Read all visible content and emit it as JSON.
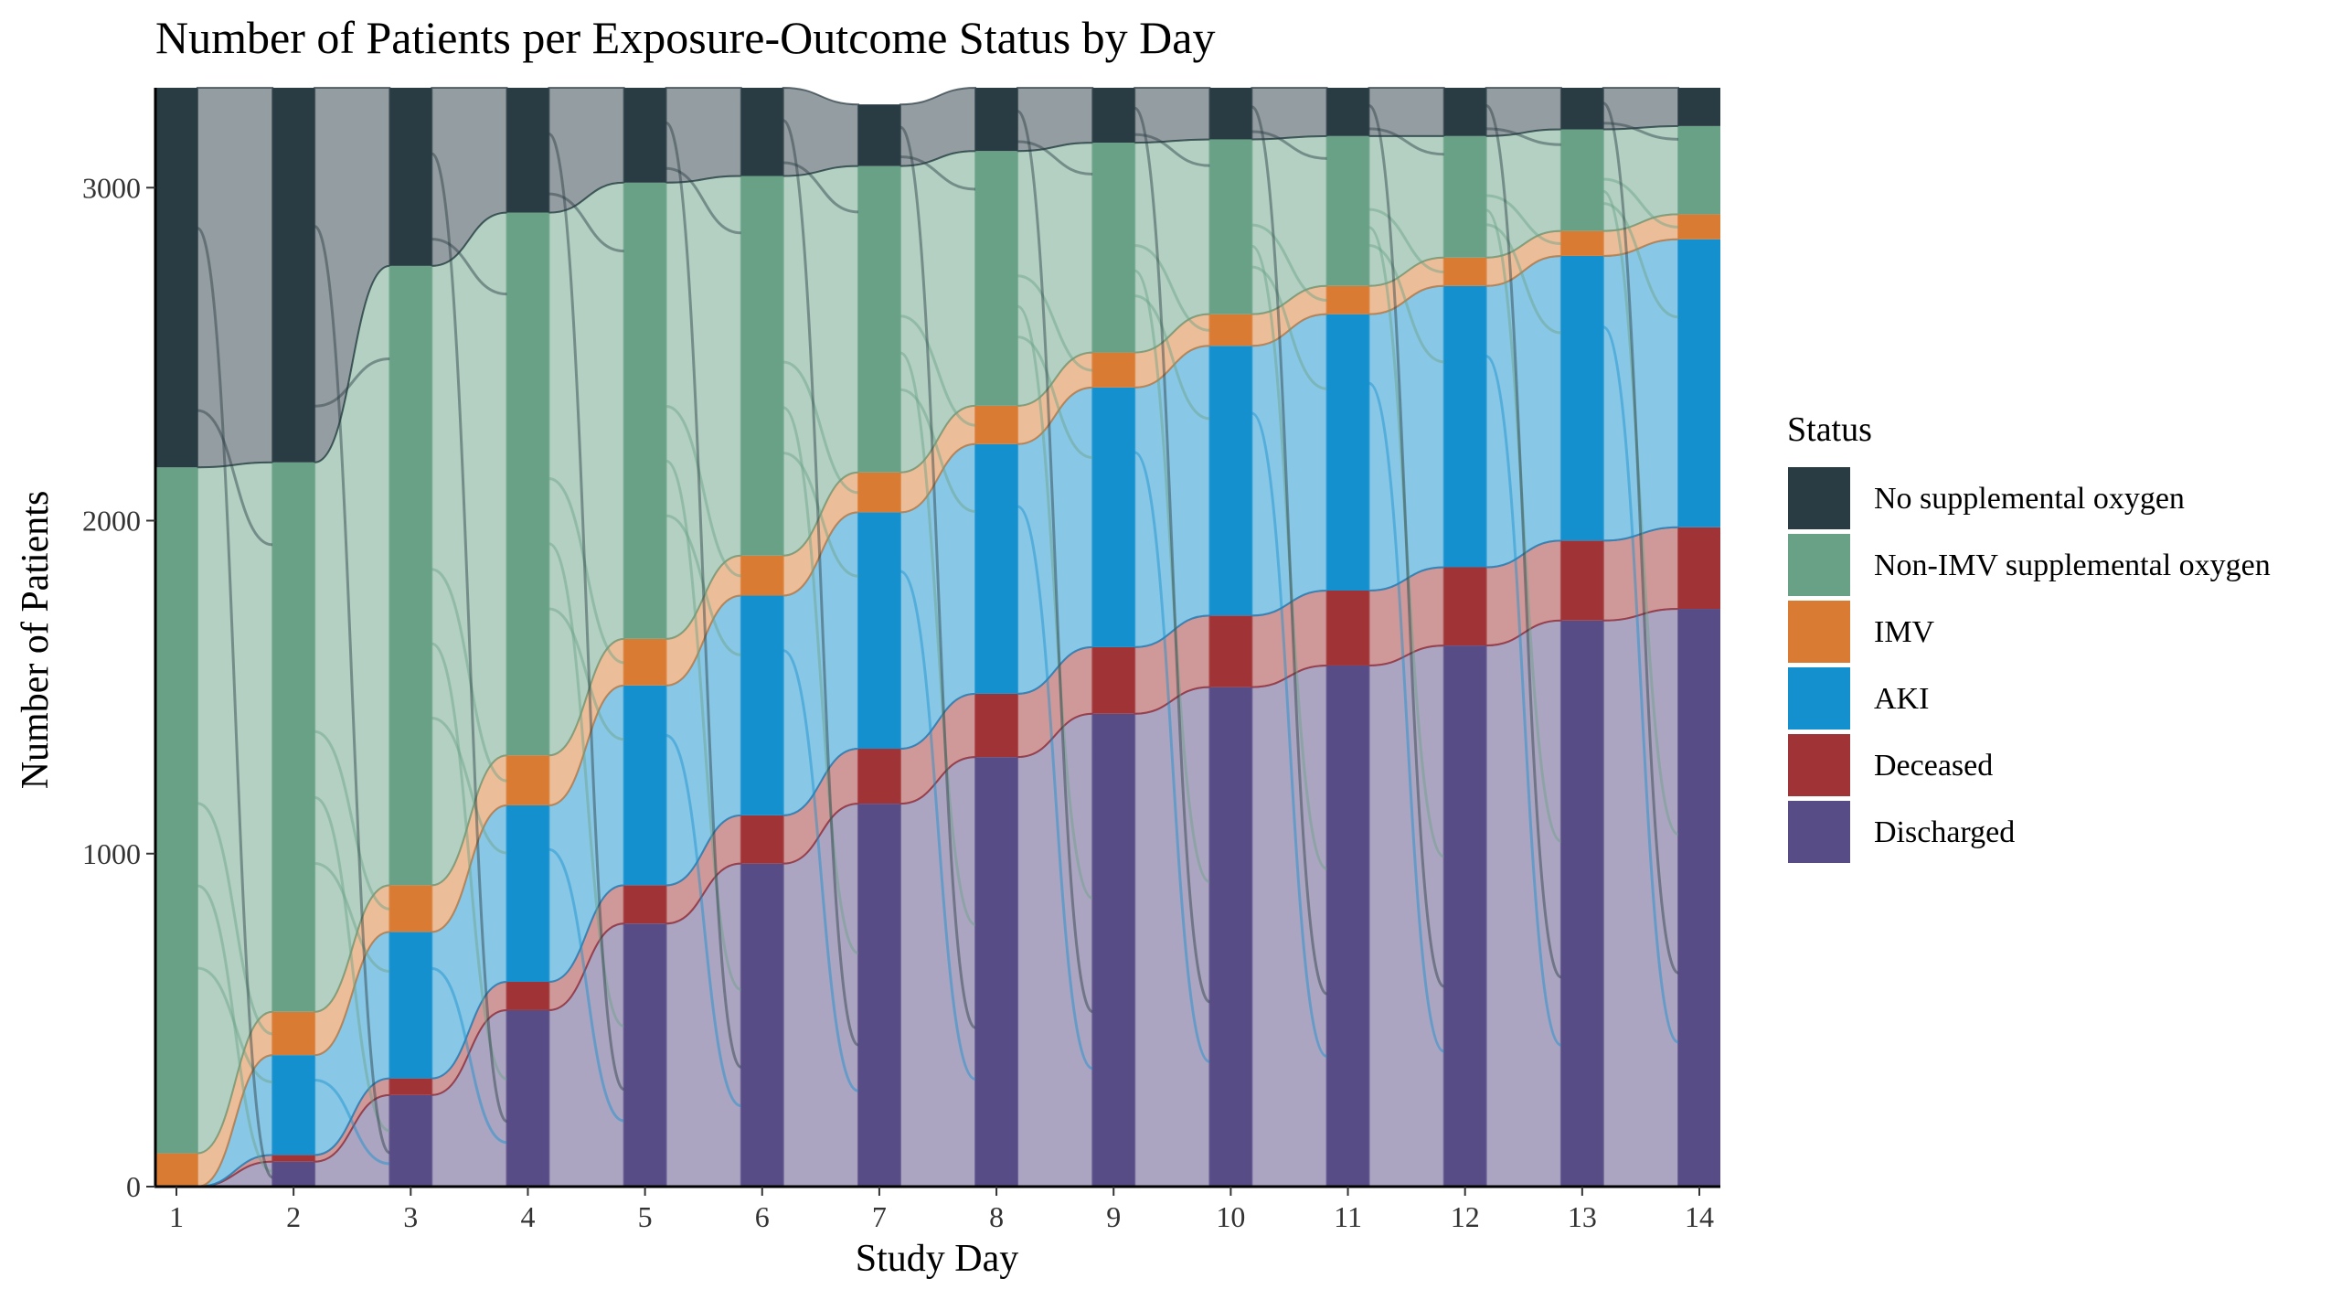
{
  "chart_data": {
    "type": "alluvial",
    "title": "Number of Patients per Exposure-Outcome Status by Day",
    "xlabel": "Study Day",
    "ylabel": "Number of Patients",
    "x": [
      1,
      2,
      3,
      4,
      5,
      6,
      7,
      8,
      9,
      10,
      11,
      12,
      13,
      14
    ],
    "ylim": [
      0,
      3300
    ],
    "yticks": [
      0,
      1000,
      2000,
      3000
    ],
    "grid": false,
    "legend": {
      "title": "Status",
      "position": "right"
    },
    "series": [
      {
        "name": "Discharged",
        "color": "#574C85",
        "values": [
          0,
          75,
          275,
          530,
          790,
          970,
          1150,
          1290,
          1420,
          1500,
          1565,
          1625,
          1700,
          1735
        ]
      },
      {
        "name": "Deceased",
        "color": "#A03336",
        "values": [
          0,
          20,
          50,
          85,
          115,
          145,
          165,
          190,
          200,
          215,
          225,
          235,
          240,
          245
        ]
      },
      {
        "name": "AKI",
        "color": "#1490CE",
        "values": [
          0,
          300,
          440,
          530,
          600,
          660,
          710,
          750,
          780,
          810,
          830,
          845,
          855,
          865
        ]
      },
      {
        "name": "IMV",
        "color": "#D97B33",
        "values": [
          100,
          130,
          140,
          150,
          140,
          120,
          120,
          115,
          105,
          95,
          85,
          85,
          75,
          75
        ]
      },
      {
        "name": "Non-IMV supplemental oxygen",
        "color": "#68A186",
        "values": [
          2060,
          1650,
          1860,
          1630,
          1370,
          1140,
          920,
          765,
          630,
          525,
          450,
          365,
          305,
          265
        ]
      },
      {
        "name": "No supplemental oxygen",
        "color": "#293B43",
        "values": [
          1140,
          1125,
          535,
          375,
          285,
          265,
          185,
          190,
          165,
          155,
          145,
          145,
          125,
          115
        ]
      }
    ]
  }
}
